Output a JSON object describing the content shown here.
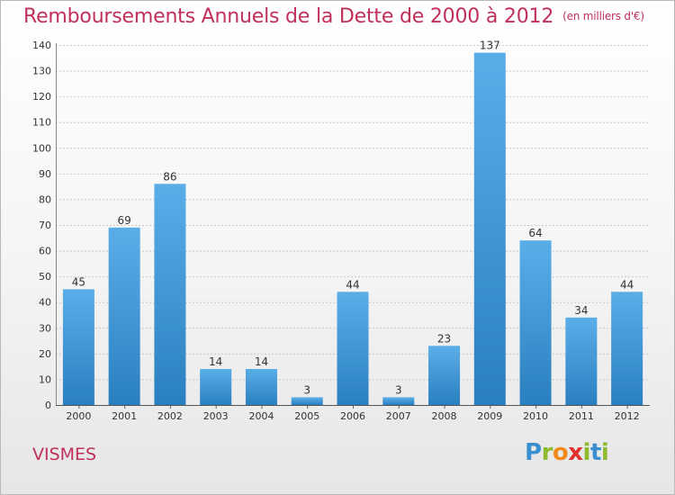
{
  "title": "Remboursements Annuels de la Dette de 2000 à 2012",
  "unit": "(en milliers d'€)",
  "place": "VISMES",
  "logo": {
    "letters": [
      "P",
      "r",
      "o",
      "x",
      "i",
      "t",
      "i"
    ],
    "colors": [
      "#3a8fd1",
      "#8dba2f",
      "#f08a1c",
      "#e0312e",
      "#8dba2f",
      "#3a8fd1",
      "#8dba2f"
    ]
  },
  "colors": {
    "bar_top": "#5aaee8",
    "bar_bottom": "#2a7fc0",
    "title": "#c0305a",
    "grid": "#c8c8c8"
  },
  "chart_data": {
    "type": "bar",
    "title": "Remboursements Annuels de la Dette de 2000 à 2012",
    "xlabel": "",
    "ylabel": "",
    "categories": [
      "2000",
      "2001",
      "2002",
      "2003",
      "2004",
      "2005",
      "2006",
      "2007",
      "2008",
      "2009",
      "2010",
      "2011",
      "2012"
    ],
    "values": [
      45,
      69,
      86,
      14,
      14,
      3,
      44,
      3,
      23,
      137,
      64,
      34,
      44
    ],
    "ylim": [
      0,
      140
    ],
    "yticks": [
      0,
      10,
      20,
      30,
      40,
      50,
      60,
      70,
      80,
      90,
      100,
      110,
      120,
      130,
      140
    ],
    "grid": true,
    "data_labels": true
  }
}
